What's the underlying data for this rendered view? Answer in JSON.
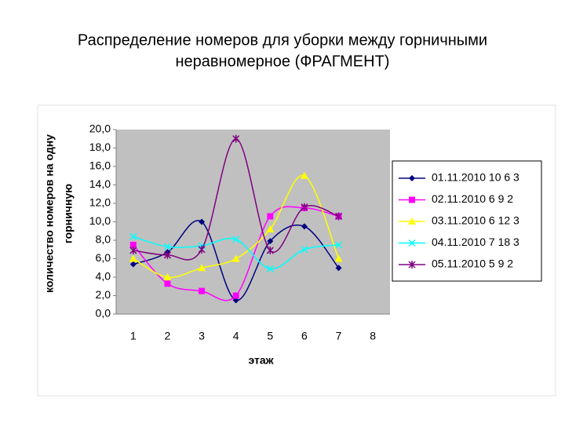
{
  "title": [
    "Распределение номеров для уборки между горничными",
    "неравномерное (ФРАГМЕНТ)"
  ],
  "chart_data": {
    "type": "line",
    "smooth": true,
    "ylabel": [
      "количество номеров на одну",
      "горничную"
    ],
    "xlabel": "этаж",
    "categories": [
      "1",
      "2",
      "3",
      "4",
      "5",
      "6",
      "7",
      "8"
    ],
    "series": [
      {
        "name": "01.11.2010 10 6 3",
        "color": "#000080",
        "marker": "diamond",
        "values": [
          5.4,
          6.7,
          10.0,
          1.5,
          7.9,
          9.5,
          5.0,
          null
        ]
      },
      {
        "name": "02.11.2010 6 9 2",
        "color": "#ff00ff",
        "marker": "square",
        "values": [
          7.5,
          3.3,
          2.5,
          2.0,
          10.6,
          11.5,
          10.6,
          null
        ]
      },
      {
        "name": "03.11.2010 6 12 3",
        "color": "#ffff00",
        "marker": "triangle",
        "values": [
          6.0,
          4.0,
          5.0,
          6.0,
          9.2,
          15.0,
          6.0,
          null
        ]
      },
      {
        "name": "04.11.2010 7 18 3",
        "color": "#00ffff",
        "marker": "x",
        "values": [
          8.4,
          7.3,
          7.4,
          8.1,
          4.9,
          7.0,
          7.5,
          null
        ]
      },
      {
        "name": "05.11.2010 5 9 2",
        "color": "#800080",
        "marker": "asterisk",
        "values": [
          6.9,
          6.4,
          7.0,
          19.0,
          6.9,
          11.6,
          10.6,
          null
        ]
      }
    ],
    "ylim": [
      0,
      20
    ],
    "yticks": [
      {
        "value": 0,
        "label": "0,0"
      },
      {
        "value": 2,
        "label": "2,0"
      },
      {
        "value": 4,
        "label": "4,0"
      },
      {
        "value": 6,
        "label": "6,0"
      },
      {
        "value": 8,
        "label": "8,0"
      },
      {
        "value": 10,
        "label": "10,0"
      },
      {
        "value": 12,
        "label": "12,0"
      },
      {
        "value": 14,
        "label": "14,0"
      },
      {
        "value": 16,
        "label": "16,0"
      },
      {
        "value": 18,
        "label": "18,0"
      },
      {
        "value": 20,
        "label": "20,0"
      }
    ],
    "plot_background": "#c0c0c0",
    "legend": "right"
  }
}
